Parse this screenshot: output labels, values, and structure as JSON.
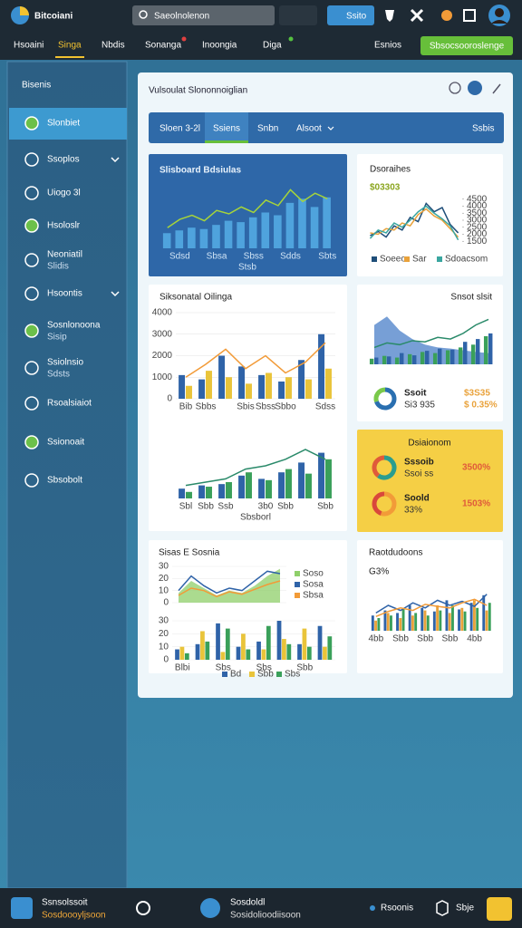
{
  "header": {
    "logo": "Bitcoiani",
    "search": "Saeolnolenon",
    "button": "Ssito"
  },
  "nav": {
    "items": [
      "Hsoaini",
      "Singa",
      "Nbdis",
      "Sonanga",
      "Inoongia",
      "Diga"
    ],
    "active": 1,
    "right_link": "Esnios",
    "cta": "Sbsocsooroslenge"
  },
  "sidebar": {
    "title": "Bisenis",
    "active": 0,
    "items": [
      {
        "label": "Slonbiet"
      },
      {
        "label": "Ssoplos"
      },
      {
        "label": "Uiogo 3l"
      },
      {
        "label": "Hsoloslr"
      },
      {
        "label": "Neoniatil",
        "sub": "Slidis"
      },
      {
        "label": "Hsoontis"
      },
      {
        "label": "Sosnlonoona",
        "sub": "Sisip"
      },
      {
        "label": "Ssiolnsio",
        "sub": "Sdsts"
      },
      {
        "label": "Rsoalsiaiot"
      },
      {
        "label": "Ssionoait"
      },
      {
        "label": "Sbsobolt"
      }
    ]
  },
  "main": {
    "title": "Vulsoulat Slononnoiglian",
    "tabs": [
      "Sloen 3-2l",
      "Ssiens",
      "Snbn",
      "Alsoot"
    ],
    "active_tab": 1,
    "tab_right": "Ssbis"
  },
  "cards": [
    {
      "title": "Slisboard Bdsiulas",
      "charts": [
        {
          "type": "combo",
          "categories": [
            null,
            "Sdsd",
            null,
            null,
            "Sbsa",
            null,
            null,
            "Sbss",
            null,
            null,
            "Sdds",
            null,
            null,
            "Sbts"
          ],
          "x_title": "Stsb",
          "ylim": [
            0,
            100
          ],
          "series": [
            {
              "kind": "bar",
              "color": "#4fa3dd",
              "values": [
                22,
                26,
                30,
                28,
                34,
                40,
                38,
                45,
                52,
                48,
                66,
                72,
                60,
                74
              ]
            },
            {
              "kind": "line",
              "color": "#a6d43a",
              "values": [
                30,
                42,
                48,
                40,
                55,
                50,
                60,
                52,
                70,
                62,
                85,
                68,
                80,
                72
              ]
            }
          ]
        }
      ]
    },
    {
      "title": "Dsoraihes",
      "subtitle": "$03303",
      "charts": [
        {
          "type": "line",
          "ylim": [
            1000,
            5000
          ],
          "yticks": [
            1500,
            2000,
            2500,
            3000,
            3500,
            4000,
            4500
          ],
          "series": [
            {
              "name": "Soeeo",
              "color": "#1f4e79",
              "values": [
                1900,
                2200,
                1800,
                2600,
                2300,
                3200,
                2900,
                4200,
                3600,
                3900,
                2700,
                2100
              ]
            },
            {
              "name": "Sar",
              "color": "#e9a23b",
              "values": [
                2100,
                2000,
                2400,
                2300,
                2800,
                2600,
                3400,
                3800,
                3300,
                3000,
                2400,
                1800
              ]
            },
            {
              "name": "Sdoacsom",
              "color": "#3aa6a0",
              "values": [
                1700,
                2300,
                2100,
                2800,
                2500,
                3000,
                3600,
                4000,
                3500,
                3100,
                2600,
                1600
              ]
            }
          ]
        }
      ]
    },
    {
      "title": "Siksonatal Oilinga",
      "charts": [
        {
          "type": "combo",
          "categories": [
            "Bib",
            "Sbbs",
            null,
            "Sbis",
            "Sbss",
            "Sbbo",
            null,
            "Sdss"
          ],
          "ylim": [
            0,
            4000
          ],
          "yticks": [
            0,
            1000,
            2000,
            3000,
            4000
          ],
          "series": [
            {
              "kind": "bar",
              "color": "#2f63a8",
              "values": [
                1100,
                900,
                2000,
                1500,
                1100,
                800,
                1800,
                3000
              ]
            },
            {
              "kind": "bar",
              "color": "#e9c43a",
              "values": [
                600,
                1300,
                1000,
                700,
                1200,
                1000,
                900,
                1400
              ]
            },
            {
              "kind": "line",
              "color": "#f29b38",
              "values": [
                1000,
                1600,
                2300,
                1400,
                2000,
                1200,
                1700,
                2600
              ]
            }
          ]
        },
        {
          "type": "combo",
          "categories": [
            "Sbl",
            "Sbb",
            "Ssb",
            null,
            "3b0",
            "Sbb",
            null,
            "Sbb"
          ],
          "x_title": "Sbsborl",
          "ylim": [
            0,
            100
          ],
          "series": [
            {
              "kind": "bar",
              "color": "#2f63a8",
              "values": [
                15,
                20,
                22,
                35,
                30,
                40,
                55,
                70
              ]
            },
            {
              "kind": "bar",
              "color": "#3aa05a",
              "values": [
                10,
                18,
                25,
                40,
                28,
                45,
                38,
                60
              ]
            },
            {
              "kind": "line",
              "color": "#2a8a6a",
              "values": [
                20,
                25,
                30,
                45,
                50,
                60,
                75,
                60
              ]
            }
          ]
        }
      ]
    },
    {
      "title": "Snsot slsit",
      "charts": [
        {
          "type": "combo",
          "ylim": [
            0,
            100
          ],
          "series": [
            {
              "kind": "area",
              "color": "#4a7fc8",
              "values": [
                70,
                85,
                60,
                45,
                35,
                30,
                28,
                25,
                22,
                20
              ]
            },
            {
              "kind": "bar",
              "color": "#3aa05a",
              "values": [
                10,
                15,
                12,
                18,
                22,
                20,
                25,
                30,
                35,
                50
              ]
            },
            {
              "kind": "bar",
              "color": "#2f63a8",
              "values": [
                12,
                14,
                20,
                16,
                24,
                28,
                26,
                40,
                45,
                55
              ]
            },
            {
              "kind": "line",
              "color": "#2a8a6a",
              "values": [
                30,
                38,
                35,
                42,
                40,
                48,
                45,
                55,
                70,
                80
              ]
            }
          ]
        },
        {
          "type": "donut",
          "values": [
            70,
            30
          ],
          "colors": [
            "#2a6fb0",
            "#7ac94a"
          ],
          "label": "Ssoit",
          "sub": "Si3 935",
          "value": "$3S35",
          "pct": "$ 0.35%"
        }
      ]
    },
    {
      "title": "Dsiaionom",
      "charts": [
        {
          "type": "donut",
          "values": [
            60,
            40
          ],
          "colors": [
            "#2a9d8f",
            "#e05a3a"
          ],
          "label": "Sssoib",
          "sub": "Ssoi ss",
          "value": "3500%"
        },
        {
          "type": "donut",
          "values": [
            55,
            45
          ],
          "colors": [
            "#f29b38",
            "#d9483b"
          ],
          "label": "Soold",
          "sub": "33%",
          "value": "1503%"
        }
      ]
    },
    {
      "title": "Sisas E Sosnia",
      "charts": [
        {
          "type": "combo",
          "ylim": [
            0,
            30
          ],
          "yticks": [
            0,
            10,
            20,
            30
          ],
          "series": [
            {
              "kind": "area",
              "name": "Soso",
              "color": "#8fcf6a",
              "values": [
                8,
                18,
                12,
                6,
                10,
                8,
                14,
                22,
                28
              ]
            },
            {
              "kind": "line",
              "name": "Sosa",
              "color": "#2f63a8",
              "values": [
                10,
                22,
                14,
                8,
                12,
                10,
                18,
                26,
                24
              ]
            },
            {
              "kind": "line",
              "name": "Sbsa",
              "color": "#f29b38",
              "values": [
                6,
                12,
                10,
                5,
                9,
                7,
                11,
                15,
                18
              ]
            }
          ]
        },
        {
          "type": "combo",
          "categories": [
            "Blbi",
            null,
            "Sbs",
            null,
            "Sbs",
            null,
            "Sbb",
            null
          ],
          "ylim": [
            0,
            30
          ],
          "yticks": [
            0,
            10,
            20,
            30
          ],
          "series": [
            {
              "kind": "bar",
              "name": "Bd",
              "color": "#2f63a8",
              "values": [
                8,
                12,
                28,
                10,
                14,
                30,
                12,
                26
              ]
            },
            {
              "kind": "bar",
              "name": "Sbb",
              "color": "#e9c43a",
              "values": [
                10,
                22,
                6,
                20,
                8,
                16,
                24,
                10
              ]
            },
            {
              "kind": "bar",
              "name": "Sbs",
              "color": "#3aa05a",
              "values": [
                5,
                14,
                24,
                8,
                26,
                12,
                10,
                18
              ]
            }
          ]
        }
      ]
    },
    {
      "title": "Raotdudoons",
      "subtitle": "G3%",
      "charts": [
        {
          "type": "combo",
          "categories": [
            "4bb",
            null,
            "Sbb",
            null,
            "Sbb",
            null,
            "Sbb",
            null,
            "4bb",
            null
          ],
          "ylim": [
            0,
            100
          ],
          "series": [
            {
              "kind": "bar",
              "color": "#2f63a8",
              "values": [
                30,
                40,
                35,
                50,
                45,
                38,
                60,
                42,
                55,
                70
              ]
            },
            {
              "kind": "bar",
              "color": "#e9a23b",
              "values": [
                20,
                35,
                25,
                30,
                40,
                50,
                35,
                45,
                60,
                40
              ]
            },
            {
              "kind": "bar",
              "color": "#3aa05a",
              "values": [
                25,
                30,
                45,
                35,
                30,
                40,
                50,
                38,
                45,
                55
              ]
            },
            {
              "kind": "line",
              "color": "#2f63a8",
              "values": [
                35,
                50,
                40,
                55,
                45,
                60,
                50,
                58,
                48,
                72
              ]
            },
            {
              "kind": "line",
              "color": "#f29b38",
              "values": [
                28,
                38,
                45,
                40,
                52,
                48,
                45,
                55,
                62,
                50
              ]
            }
          ]
        }
      ]
    }
  ],
  "footer": {
    "left_title": "Ssnsolssoit",
    "left_sub": "Sosdoooyljsoon",
    "mid_title": "Sosdoldl",
    "mid_sub": "Sosidolioodiisoon",
    "right_link": "Rsoonis",
    "right_item": "Sbje"
  }
}
